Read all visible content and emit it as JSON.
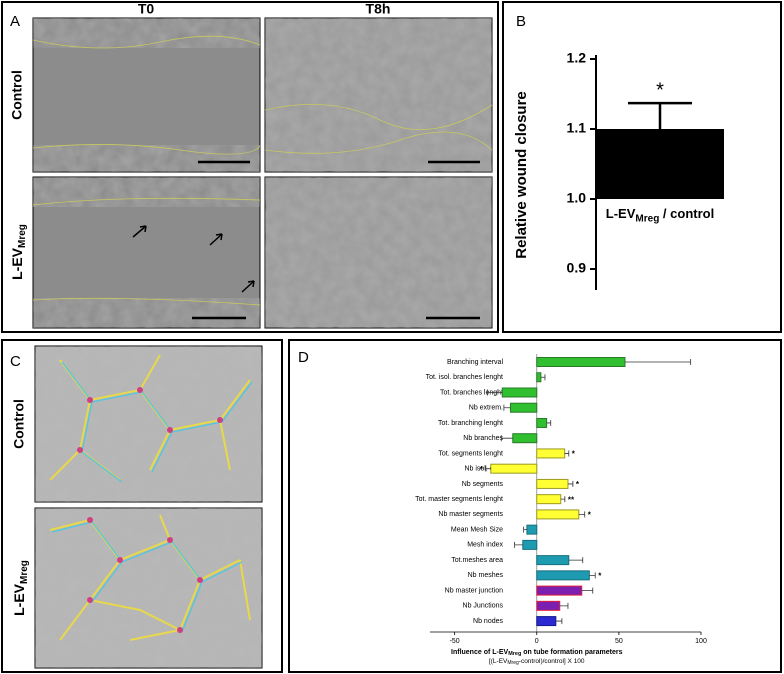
{
  "panels": {
    "labels": [
      "A",
      "B",
      "C",
      "D"
    ]
  },
  "panel_a": {
    "columns": [
      "T0",
      "T8h"
    ],
    "rows": [
      {
        "text": "Control"
      },
      {
        "text": "L-EV",
        "sub": "Mreg"
      }
    ]
  },
  "panel_c": {
    "rows": [
      {
        "text": "Control"
      },
      {
        "text": "L-EV",
        "sub": "Mreg"
      }
    ]
  },
  "chart_data": [
    {
      "type": "bar",
      "categories": [
        {
          "text": "L-EV",
          "sub": "Mreg",
          "after": " / control"
        }
      ],
      "values": [
        1.1
      ],
      "errors": [
        0.037
      ],
      "annotations": [
        "*"
      ],
      "ylabel": "Relative wound closure",
      "ylim": [
        0.87,
        1.2
      ],
      "yticks": [
        0.9,
        {
          "value": 1,
          "label": "1.0"
        },
        1.1,
        1.2
      ],
      "bar_base": 1,
      "color": "#000000"
    },
    {
      "type": "hbar",
      "categories": [
        "Branching interval",
        "Tot. isol. branches lenght",
        "Tot. branches lenght",
        "Nb extrem.",
        "Tot. branching lenght",
        "Nb branches",
        "Tot. segments lenght",
        "Nb isol. seg.",
        "Nb segments",
        "Tot. master segments lenght",
        "Nb master segments",
        "Mean Mesh Size",
        "Mesh index",
        "Tot.meshes area",
        "Nb meshes",
        "Nb master junction",
        "Nb Junctions",
        "Nb nodes"
      ],
      "values": [
        53.7,
        2.5,
        -21,
        -16,
        6,
        -14.6,
        17,
        -28,
        19,
        14.6,
        25.6,
        -6,
        -8.5,
        19.5,
        32,
        27.4,
        14,
        11.6
      ],
      "errors": [
        40,
        2.5,
        9,
        4,
        2.5,
        7,
        2.5,
        3,
        3,
        2.5,
        3.6,
        2,
        5,
        8.5,
        3.6,
        6.7,
        5,
        3.7
      ],
      "annotations": [
        null,
        null,
        null,
        null,
        null,
        null,
        "*",
        "*",
        "*",
        "**",
        "*",
        null,
        null,
        null,
        "*",
        null,
        null,
        null
      ],
      "colors": [
        "#2fbf2f",
        "#2fbf2f",
        "#2fbf2f",
        "#2fbf2f",
        "#2fbf2f",
        "#2fbf2f",
        "#ffff33",
        "#ffff33",
        "#ffff33",
        "#ffff33",
        "#ffff33",
        "#1e9bb0",
        "#1e9bb0",
        "#1e9bb0",
        "#1e9bb0",
        "#7a1fb0",
        "#7a1fb0",
        "#2a2ad0"
      ],
      "edgecolors": [
        "#2a7a2a",
        "#2a7a2a",
        "#2a7a2a",
        "#2a7a2a",
        "#2a7a2a",
        "#2a7a2a",
        "#9a9a20",
        "#9a9a20",
        "#9a9a20",
        "#9a9a20",
        "#9a9a20",
        "#16707f",
        "#16707f",
        "#16707f",
        "#16707f",
        "#e0203a",
        "#e0203a",
        "#1a1a90"
      ],
      "xlabel": {
        "text": "Influence of L-EV",
        "sub": "Mreg",
        "after": " on tube formation parameters"
      },
      "xlabel2": {
        "text": "[(L-EV",
        "sub": "Mreg",
        "after": "-control)/control] X 100"
      },
      "xlim": [
        -65,
        100
      ],
      "xticks": [
        -50,
        0,
        50,
        100
      ]
    }
  ]
}
